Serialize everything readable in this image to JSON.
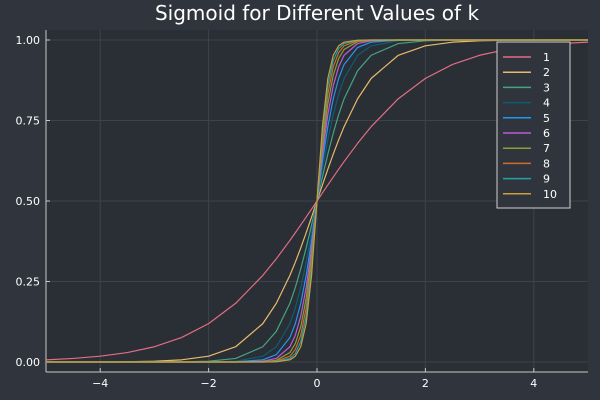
{
  "chart_data": {
    "type": "line",
    "title": "Sigmoid for Different Values of k",
    "xlabel": "",
    "ylabel": "",
    "xlim": [
      -5,
      5
    ],
    "ylim": [
      0,
      1
    ],
    "x_ticks": [
      {
        "value": -4,
        "label": "−4"
      },
      {
        "value": -2,
        "label": "−2"
      },
      {
        "value": 0,
        "label": "0"
      },
      {
        "value": 2,
        "label": "2"
      },
      {
        "value": 4,
        "label": "4"
      }
    ],
    "y_ticks": [
      {
        "value": 0.0,
        "label": "0.00"
      },
      {
        "value": 0.25,
        "label": "0.25"
      },
      {
        "value": 0.5,
        "label": "0.50"
      },
      {
        "value": 0.75,
        "label": "0.75"
      },
      {
        "value": 1.0,
        "label": "1.00"
      }
    ],
    "grid": true,
    "legend_position": "top-right",
    "x": [
      -5,
      -4.5,
      -4,
      -3.5,
      -3,
      -2.5,
      -2,
      -1.5,
      -1,
      -0.75,
      -0.5,
      -0.4,
      -0.3,
      -0.2,
      -0.1,
      0,
      0.1,
      0.2,
      0.3,
      0.4,
      0.5,
      0.75,
      1,
      1.5,
      2,
      2.5,
      3,
      3.5,
      4,
      4.5,
      5
    ],
    "series": [
      {
        "name": "1",
        "color": "#e26d84",
        "values": [
          0.0067,
          0.011,
          0.018,
          0.0293,
          0.0474,
          0.0759,
          0.1192,
          0.1824,
          0.2689,
          0.3208,
          0.3775,
          0.4013,
          0.4256,
          0.4502,
          0.475,
          0.5,
          0.525,
          0.5498,
          0.5744,
          0.5987,
          0.6225,
          0.6792,
          0.7311,
          0.8176,
          0.8808,
          0.9241,
          0.9526,
          0.9707,
          0.982,
          0.989,
          0.9933
        ]
      },
      {
        "name": "2",
        "color": "#e8bb6a",
        "values": [
          0.0,
          0.0001,
          0.0003,
          0.0009,
          0.0025,
          0.0067,
          0.018,
          0.0474,
          0.1192,
          0.1824,
          0.2689,
          0.31,
          0.3543,
          0.4013,
          0.4502,
          0.5,
          0.5498,
          0.5987,
          0.6457,
          0.69,
          0.7311,
          0.8176,
          0.8808,
          0.9526,
          0.982,
          0.9933,
          0.9975,
          0.9991,
          0.9997,
          0.9999,
          1.0
        ]
      },
      {
        "name": "3",
        "color": "#46a383",
        "values": [
          0.0,
          0.0,
          0.0,
          0.0,
          0.0001,
          0.0006,
          0.0025,
          0.011,
          0.0474,
          0.0953,
          0.1824,
          0.2315,
          0.2891,
          0.3543,
          0.4256,
          0.5,
          0.5744,
          0.6457,
          0.7109,
          0.7685,
          0.8176,
          0.9047,
          0.9526,
          0.989,
          0.9975,
          0.9994,
          0.9999,
          1.0,
          1.0,
          1.0,
          1.0
        ]
      },
      {
        "name": "4",
        "color": "#0d5e74",
        "values": [
          0.0,
          0.0,
          0.0,
          0.0,
          0.0,
          0.0,
          0.0003,
          0.0025,
          0.018,
          0.0474,
          0.1192,
          0.168,
          0.2315,
          0.31,
          0.4013,
          0.5,
          0.5987,
          0.69,
          0.7685,
          0.832,
          0.8808,
          0.9526,
          0.982,
          0.9975,
          0.9997,
          1.0,
          1.0,
          1.0,
          1.0,
          1.0,
          1.0
        ]
      },
      {
        "name": "5",
        "color": "#2496f0",
        "values": [
          0.0,
          0.0,
          0.0,
          0.0,
          0.0,
          0.0,
          0.0,
          0.0006,
          0.0067,
          0.023,
          0.0759,
          0.1192,
          0.1824,
          0.2689,
          0.3775,
          0.5,
          0.6225,
          0.7311,
          0.8176,
          0.8808,
          0.9241,
          0.977,
          0.9933,
          0.9994,
          1.0,
          1.0,
          1.0,
          1.0,
          1.0,
          1.0,
          1.0
        ]
      },
      {
        "name": "6",
        "color": "#c05ad8",
        "values": [
          0.0,
          0.0,
          0.0,
          0.0,
          0.0,
          0.0,
          0.0,
          0.0001,
          0.0025,
          0.011,
          0.0474,
          0.0832,
          0.1419,
          0.2315,
          0.3543,
          0.5,
          0.6457,
          0.7685,
          0.8581,
          0.9168,
          0.9526,
          0.989,
          0.9975,
          0.9999,
          1.0,
          1.0,
          1.0,
          1.0,
          1.0,
          1.0,
          1.0
        ]
      },
      {
        "name": "7",
        "color": "#8b9c3a",
        "values": [
          0.0,
          0.0,
          0.0,
          0.0,
          0.0,
          0.0,
          0.0,
          0.0,
          0.0009,
          0.0052,
          0.0293,
          0.0573,
          0.1091,
          0.1978,
          0.3318,
          0.5,
          0.6682,
          0.8022,
          0.8909,
          0.9427,
          0.9707,
          0.9948,
          0.9991,
          1.0,
          1.0,
          1.0,
          1.0,
          1.0,
          1.0,
          1.0,
          1.0
        ]
      },
      {
        "name": "8",
        "color": "#d16a2c",
        "values": [
          0.0,
          0.0,
          0.0,
          0.0,
          0.0,
          0.0,
          0.0,
          0.0,
          0.0003,
          0.0025,
          0.018,
          0.0392,
          0.0832,
          0.168,
          0.31,
          0.5,
          0.69,
          0.832,
          0.9168,
          0.9608,
          0.982,
          0.9975,
          0.9997,
          1.0,
          1.0,
          1.0,
          1.0,
          1.0,
          1.0,
          1.0,
          1.0
        ]
      },
      {
        "name": "9",
        "color": "#1fa3a6",
        "values": [
          0.0,
          0.0,
          0.0,
          0.0,
          0.0,
          0.0,
          0.0,
          0.0,
          0.0001,
          0.0012,
          0.011,
          0.0266,
          0.063,
          0.1419,
          0.2891,
          0.5,
          0.7109,
          0.8581,
          0.937,
          0.9734,
          0.989,
          0.9988,
          0.9999,
          1.0,
          1.0,
          1.0,
          1.0,
          1.0,
          1.0,
          1.0,
          1.0
        ]
      },
      {
        "name": "10",
        "color": "#c9a13a",
        "values": [
          0.0,
          0.0,
          0.0,
          0.0,
          0.0,
          0.0,
          0.0,
          0.0,
          0.0,
          0.0006,
          0.0067,
          0.018,
          0.0474,
          0.1192,
          0.2689,
          0.5,
          0.7311,
          0.8808,
          0.9526,
          0.982,
          0.9933,
          0.9994,
          1.0,
          1.0,
          1.0,
          1.0,
          1.0,
          1.0,
          1.0,
          1.0,
          1.0
        ]
      }
    ]
  }
}
